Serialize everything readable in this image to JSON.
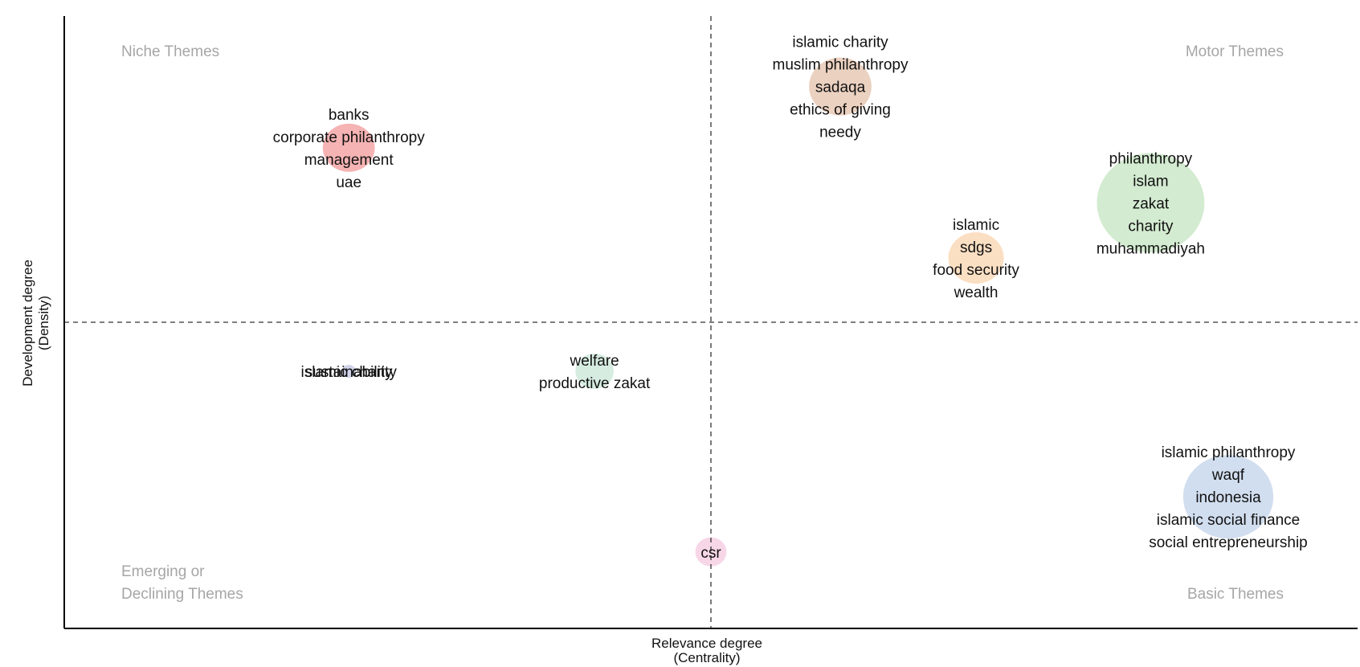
{
  "chart_data": {
    "type": "scatter",
    "title": "",
    "xlabel": [
      "Relevance degree",
      "(Centrality)"
    ],
    "ylabel": [
      "Development degree",
      "(Density)"
    ],
    "xlim": [
      0,
      1
    ],
    "ylim": [
      0,
      1
    ],
    "threshold_x": 0.5,
    "threshold_y": 0.5,
    "grid": false,
    "quadrants": {
      "top_left": [
        "Niche Themes"
      ],
      "top_right": [
        "Motor Themes"
      ],
      "bottom_left": [
        "Emerging or",
        "Declining Themes"
      ],
      "bottom_right": [
        "Basic Themes"
      ]
    },
    "clusters": [
      {
        "x": 0.22,
        "y": 0.785,
        "size": 30,
        "color": "#f4a6a6",
        "labels": [
          "banks",
          "corporate philanthropy",
          "management",
          "uae"
        ]
      },
      {
        "x": 0.6,
        "y": 0.885,
        "size": 36,
        "color": "#e7c9b5",
        "labels": [
          "islamic charity",
          "muslim philanthropy",
          "sadaqa",
          "ethics of giving",
          "needy"
        ]
      },
      {
        "x": 0.84,
        "y": 0.695,
        "size": 62,
        "color": "#cbe8c8",
        "labels": [
          "philanthropy",
          "islam",
          "zakat",
          "charity",
          "muhammadiyah"
        ]
      },
      {
        "x": 0.705,
        "y": 0.605,
        "size": 32,
        "color": "#fad9b9",
        "labels": [
          "islamic",
          "sdgs",
          "food security",
          "wealth"
        ]
      },
      {
        "x": 0.22,
        "y": 0.42,
        "size": 8,
        "color": "#c9cde6",
        "labels": [
          "islamic charity",
          "sustainability"
        ]
      },
      {
        "x": 0.41,
        "y": 0.42,
        "size": 22,
        "color": "#cfe9dc",
        "labels": [
          "welfare",
          "productive zakat"
        ]
      },
      {
        "x": 0.5,
        "y": 0.125,
        "size": 18,
        "color": "#f6cfe3",
        "labels": [
          "csr"
        ]
      },
      {
        "x": 0.9,
        "y": 0.215,
        "size": 52,
        "color": "#c9d8ec",
        "labels": [
          "islamic philanthropy",
          "waqf",
          "indonesia",
          "islamic social finance",
          "social entrepreneurship"
        ]
      }
    ]
  }
}
